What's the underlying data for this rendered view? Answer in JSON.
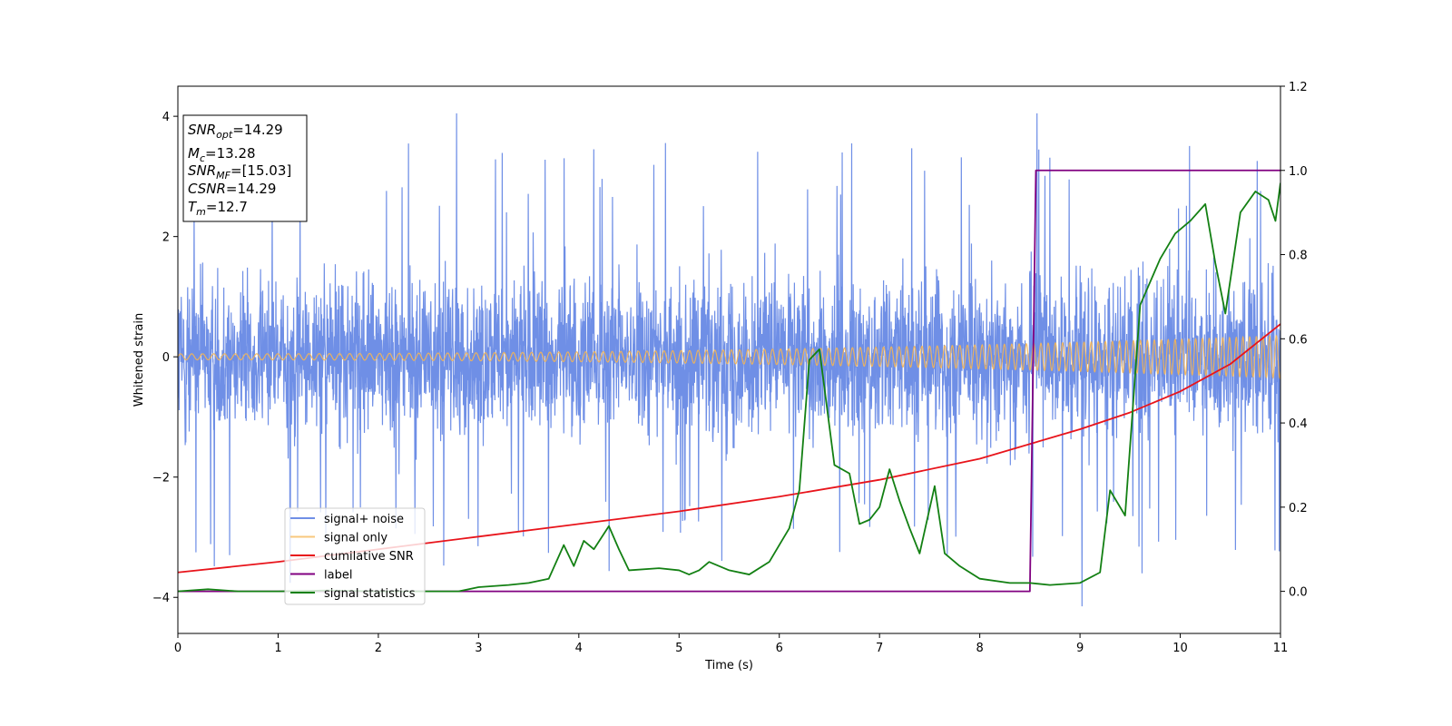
{
  "chart_data": {
    "type": "line",
    "xlabel": "Time (s)",
    "ylabel": "Whitened strain",
    "xlim": [
      0,
      11
    ],
    "ylim": [
      -4.6,
      4.5
    ],
    "y2lim": [
      -0.1,
      1.2
    ],
    "x_ticks": [
      "0",
      "1",
      "2",
      "3",
      "4",
      "5",
      "6",
      "7",
      "8",
      "9",
      "10",
      "11"
    ],
    "y_ticks": [
      "4",
      "2",
      "0",
      "−2",
      "−4"
    ],
    "y2_ticks": [
      "1.2",
      "1.0",
      "0.8",
      "0.6",
      "0.4",
      "0.2",
      "0.0"
    ],
    "grid": false,
    "legend_position": "lower-left",
    "info_box": {
      "snr_opt": {
        "main": "SNR",
        "sub": "opt",
        "rest": "=14.29"
      },
      "mc": {
        "main": "M",
        "sub": "c",
        "rest": "=13.28"
      },
      "snr_mf": {
        "main": "SNR",
        "sub": "MF",
        "rest": "=[15.03]"
      },
      "csnr": {
        "main": "CSNR",
        "rest": "=14.29"
      },
      "tm": {
        "main": "T",
        "sub": "m",
        "rest": "=12.7"
      }
    },
    "series": [
      {
        "name": "signal+ noise",
        "color": "#6f8fe6",
        "axis": "left",
        "description": "noisy whitened strain, spans about -3 to +3 with spikes to ~4",
        "amplitude_envelope": [
          3.0,
          3.0
        ],
        "extreme_spikes": [
          [
            2.78,
            4.05
          ],
          [
            8.57,
            4.05
          ],
          [
            1.12,
            -3.75
          ],
          [
            9.02,
            -4.15
          ],
          [
            9.62,
            -3.6
          ]
        ]
      },
      {
        "name": "signal only",
        "color": "#f5b553",
        "axis": "left",
        "description": "chirp oscillation growing in amplitude",
        "amplitude": [
          [
            0,
            0.05
          ],
          [
            11,
            0.35
          ]
        ]
      },
      {
        "name": "cumilative SNR",
        "color": "#e8141b",
        "axis": "right",
        "points": [
          [
            0,
            0.045
          ],
          [
            1,
            0.07
          ],
          [
            2,
            0.1
          ],
          [
            3,
            0.13
          ],
          [
            4,
            0.16
          ],
          [
            5,
            0.19
          ],
          [
            6,
            0.225
          ],
          [
            7,
            0.265
          ],
          [
            8,
            0.315
          ],
          [
            9,
            0.385
          ],
          [
            9.5,
            0.425
          ],
          [
            10,
            0.475
          ],
          [
            10.5,
            0.54
          ],
          [
            11,
            0.635
          ]
        ]
      },
      {
        "name": "label",
        "color": "#800080",
        "axis": "right",
        "points": [
          [
            0,
            0.0
          ],
          [
            8.5,
            0.0
          ],
          [
            8.56,
            1.0
          ],
          [
            11,
            1.0
          ]
        ]
      },
      {
        "name": "signal statistics",
        "color": "#138013",
        "axis": "right",
        "points": [
          [
            0,
            0.0
          ],
          [
            0.3,
            0.005
          ],
          [
            0.6,
            0.0
          ],
          [
            1,
            0.0
          ],
          [
            1.5,
            0.002
          ],
          [
            2,
            0.0
          ],
          [
            2.5,
            0.0
          ],
          [
            2.8,
            0.0
          ],
          [
            3.0,
            0.01
          ],
          [
            3.3,
            0.015
          ],
          [
            3.5,
            0.02
          ],
          [
            3.7,
            0.03
          ],
          [
            3.85,
            0.11
          ],
          [
            3.95,
            0.06
          ],
          [
            4.05,
            0.12
          ],
          [
            4.15,
            0.1
          ],
          [
            4.3,
            0.155
          ],
          [
            4.4,
            0.1
          ],
          [
            4.5,
            0.05
          ],
          [
            4.8,
            0.055
          ],
          [
            5.0,
            0.05
          ],
          [
            5.1,
            0.04
          ],
          [
            5.2,
            0.05
          ],
          [
            5.3,
            0.07
          ],
          [
            5.5,
            0.05
          ],
          [
            5.7,
            0.04
          ],
          [
            5.9,
            0.07
          ],
          [
            6.0,
            0.11
          ],
          [
            6.1,
            0.15
          ],
          [
            6.2,
            0.24
          ],
          [
            6.3,
            0.55
          ],
          [
            6.4,
            0.575
          ],
          [
            6.55,
            0.3
          ],
          [
            6.7,
            0.28
          ],
          [
            6.8,
            0.16
          ],
          [
            6.9,
            0.17
          ],
          [
            7.0,
            0.2
          ],
          [
            7.1,
            0.29
          ],
          [
            7.2,
            0.215
          ],
          [
            7.3,
            0.15
          ],
          [
            7.4,
            0.09
          ],
          [
            7.55,
            0.25
          ],
          [
            7.65,
            0.09
          ],
          [
            7.8,
            0.06
          ],
          [
            8.0,
            0.03
          ],
          [
            8.3,
            0.02
          ],
          [
            8.5,
            0.02
          ],
          [
            8.7,
            0.015
          ],
          [
            9.0,
            0.02
          ],
          [
            9.2,
            0.045
          ],
          [
            9.3,
            0.24
          ],
          [
            9.45,
            0.18
          ],
          [
            9.6,
            0.68
          ],
          [
            9.8,
            0.79
          ],
          [
            9.95,
            0.85
          ],
          [
            10.1,
            0.88
          ],
          [
            10.25,
            0.92
          ],
          [
            10.35,
            0.78
          ],
          [
            10.45,
            0.66
          ],
          [
            10.6,
            0.9
          ],
          [
            10.75,
            0.95
          ],
          [
            10.88,
            0.93
          ],
          [
            10.95,
            0.88
          ],
          [
            11.0,
            0.97
          ]
        ]
      }
    ]
  }
}
